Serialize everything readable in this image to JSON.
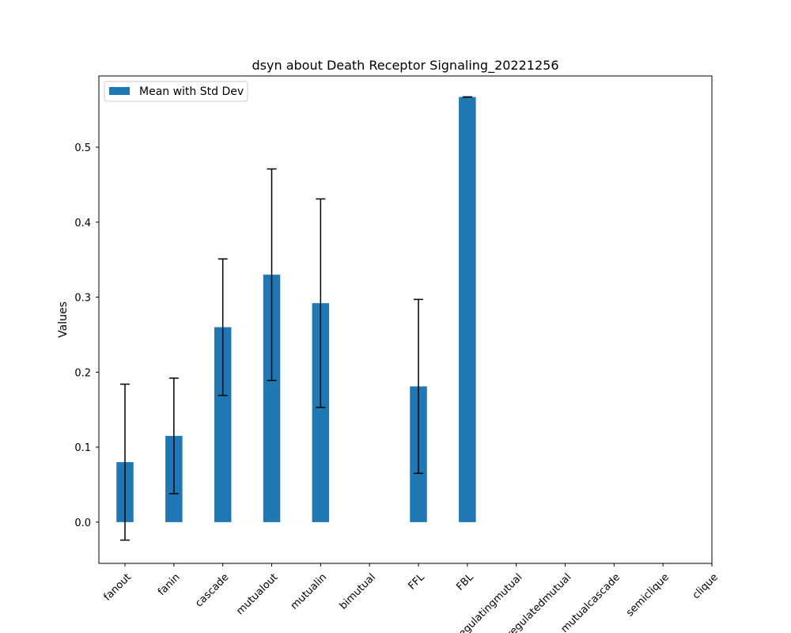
{
  "chart_data": {
    "type": "bar",
    "title": "dsyn about Death Receptor Signaling_20221256",
    "xlabel": "",
    "ylabel": "Values",
    "legend": {
      "label": "Mean with Std Dev",
      "location": "top-left"
    },
    "categories": [
      "fanout",
      "fanin",
      "cascade",
      "mutualout",
      "mutualin",
      "bimutual",
      "FFL",
      "FBL",
      "regulatingmutual",
      "regulatedmutual",
      "mutualcascade",
      "semiclique",
      "clique"
    ],
    "values": [
      0.08,
      0.115,
      0.26,
      0.33,
      0.292,
      null,
      0.181,
      0.567,
      null,
      null,
      null,
      null,
      null
    ],
    "errors": [
      0.104,
      0.077,
      0.091,
      0.141,
      0.139,
      null,
      0.116,
      0.0,
      null,
      null,
      null,
      null,
      null
    ],
    "ylim": [
      -0.055,
      0.595
    ],
    "yticks": [
      0.0,
      0.1,
      0.2,
      0.3,
      0.4,
      0.5
    ],
    "ytick_labels": [
      "0.0",
      "0.1",
      "0.2",
      "0.3",
      "0.4",
      "0.5"
    ],
    "grid": false,
    "bar_color": "#1f77b4",
    "error_color": "#000000"
  }
}
